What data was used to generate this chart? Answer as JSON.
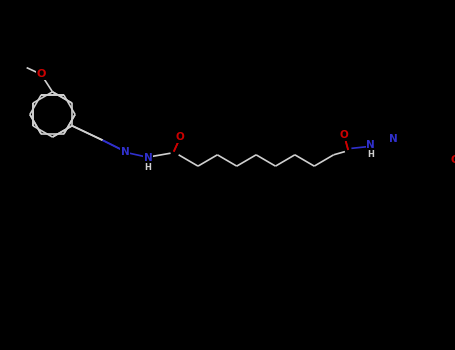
{
  "background_color": "#000000",
  "bond_color": "#d0d0d0",
  "nitrogen_color": "#3030cc",
  "oxygen_color": "#cc0000",
  "lw": 1.2,
  "dbo": 0.012,
  "figsize": [
    4.55,
    3.5
  ],
  "dpi": 100,
  "xlim": [
    0,
    455
  ],
  "ylim": [
    0,
    350
  ]
}
